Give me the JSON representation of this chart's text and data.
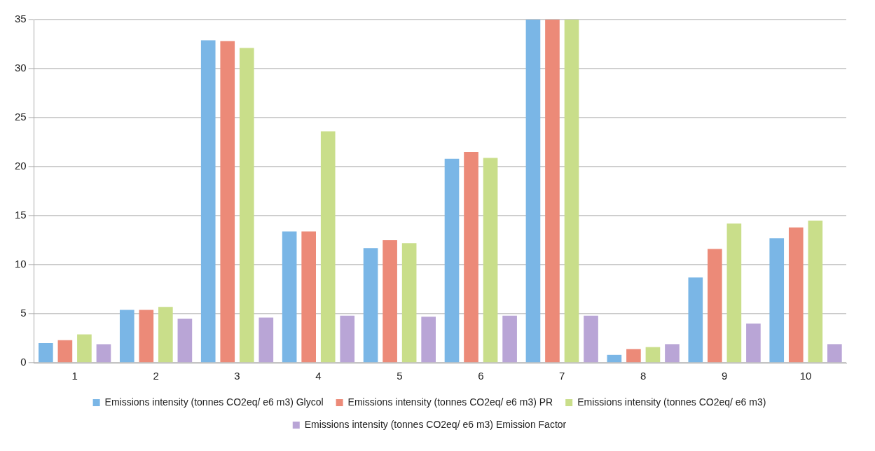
{
  "chart_data": {
    "type": "bar",
    "categories": [
      "1",
      "2",
      "3",
      "4",
      "5",
      "6",
      "7",
      "8",
      "9",
      "10"
    ],
    "series": [
      {
        "name": "Emissions intensity (tonnes CO2eq/ e6 m3) Glycol",
        "color": "#7ab6e6",
        "values": [
          2.0,
          5.4,
          32.9,
          13.4,
          11.7,
          20.8,
          35,
          0.8,
          8.7,
          12.7
        ]
      },
      {
        "name": "Emissions intensity (tonnes CO2eq/ e6 m3) PR",
        "color": "#ec8a78",
        "values": [
          2.3,
          5.4,
          32.8,
          13.4,
          12.5,
          21.5,
          35,
          1.4,
          11.6,
          13.8
        ]
      },
      {
        "name": "Emissions intensity (tonnes CO2eq/ e6 m3)",
        "color": "#c9de8a",
        "values": [
          2.9,
          5.7,
          32.1,
          23.6,
          12.2,
          20.9,
          35,
          1.6,
          14.2,
          14.5
        ]
      },
      {
        "name": "Emissions intensity (tonnes CO2eq/ e6 m3) Emission Factor",
        "color": "#b9a5d6",
        "values": [
          1.9,
          4.5,
          4.6,
          4.8,
          4.7,
          4.8,
          4.8,
          1.9,
          4.0,
          1.9
        ]
      }
    ],
    "ylim": [
      0,
      35
    ],
    "yticks": [
      0,
      5,
      10,
      15,
      20,
      25,
      30,
      35
    ],
    "grid": "y",
    "legend": "bottom"
  }
}
